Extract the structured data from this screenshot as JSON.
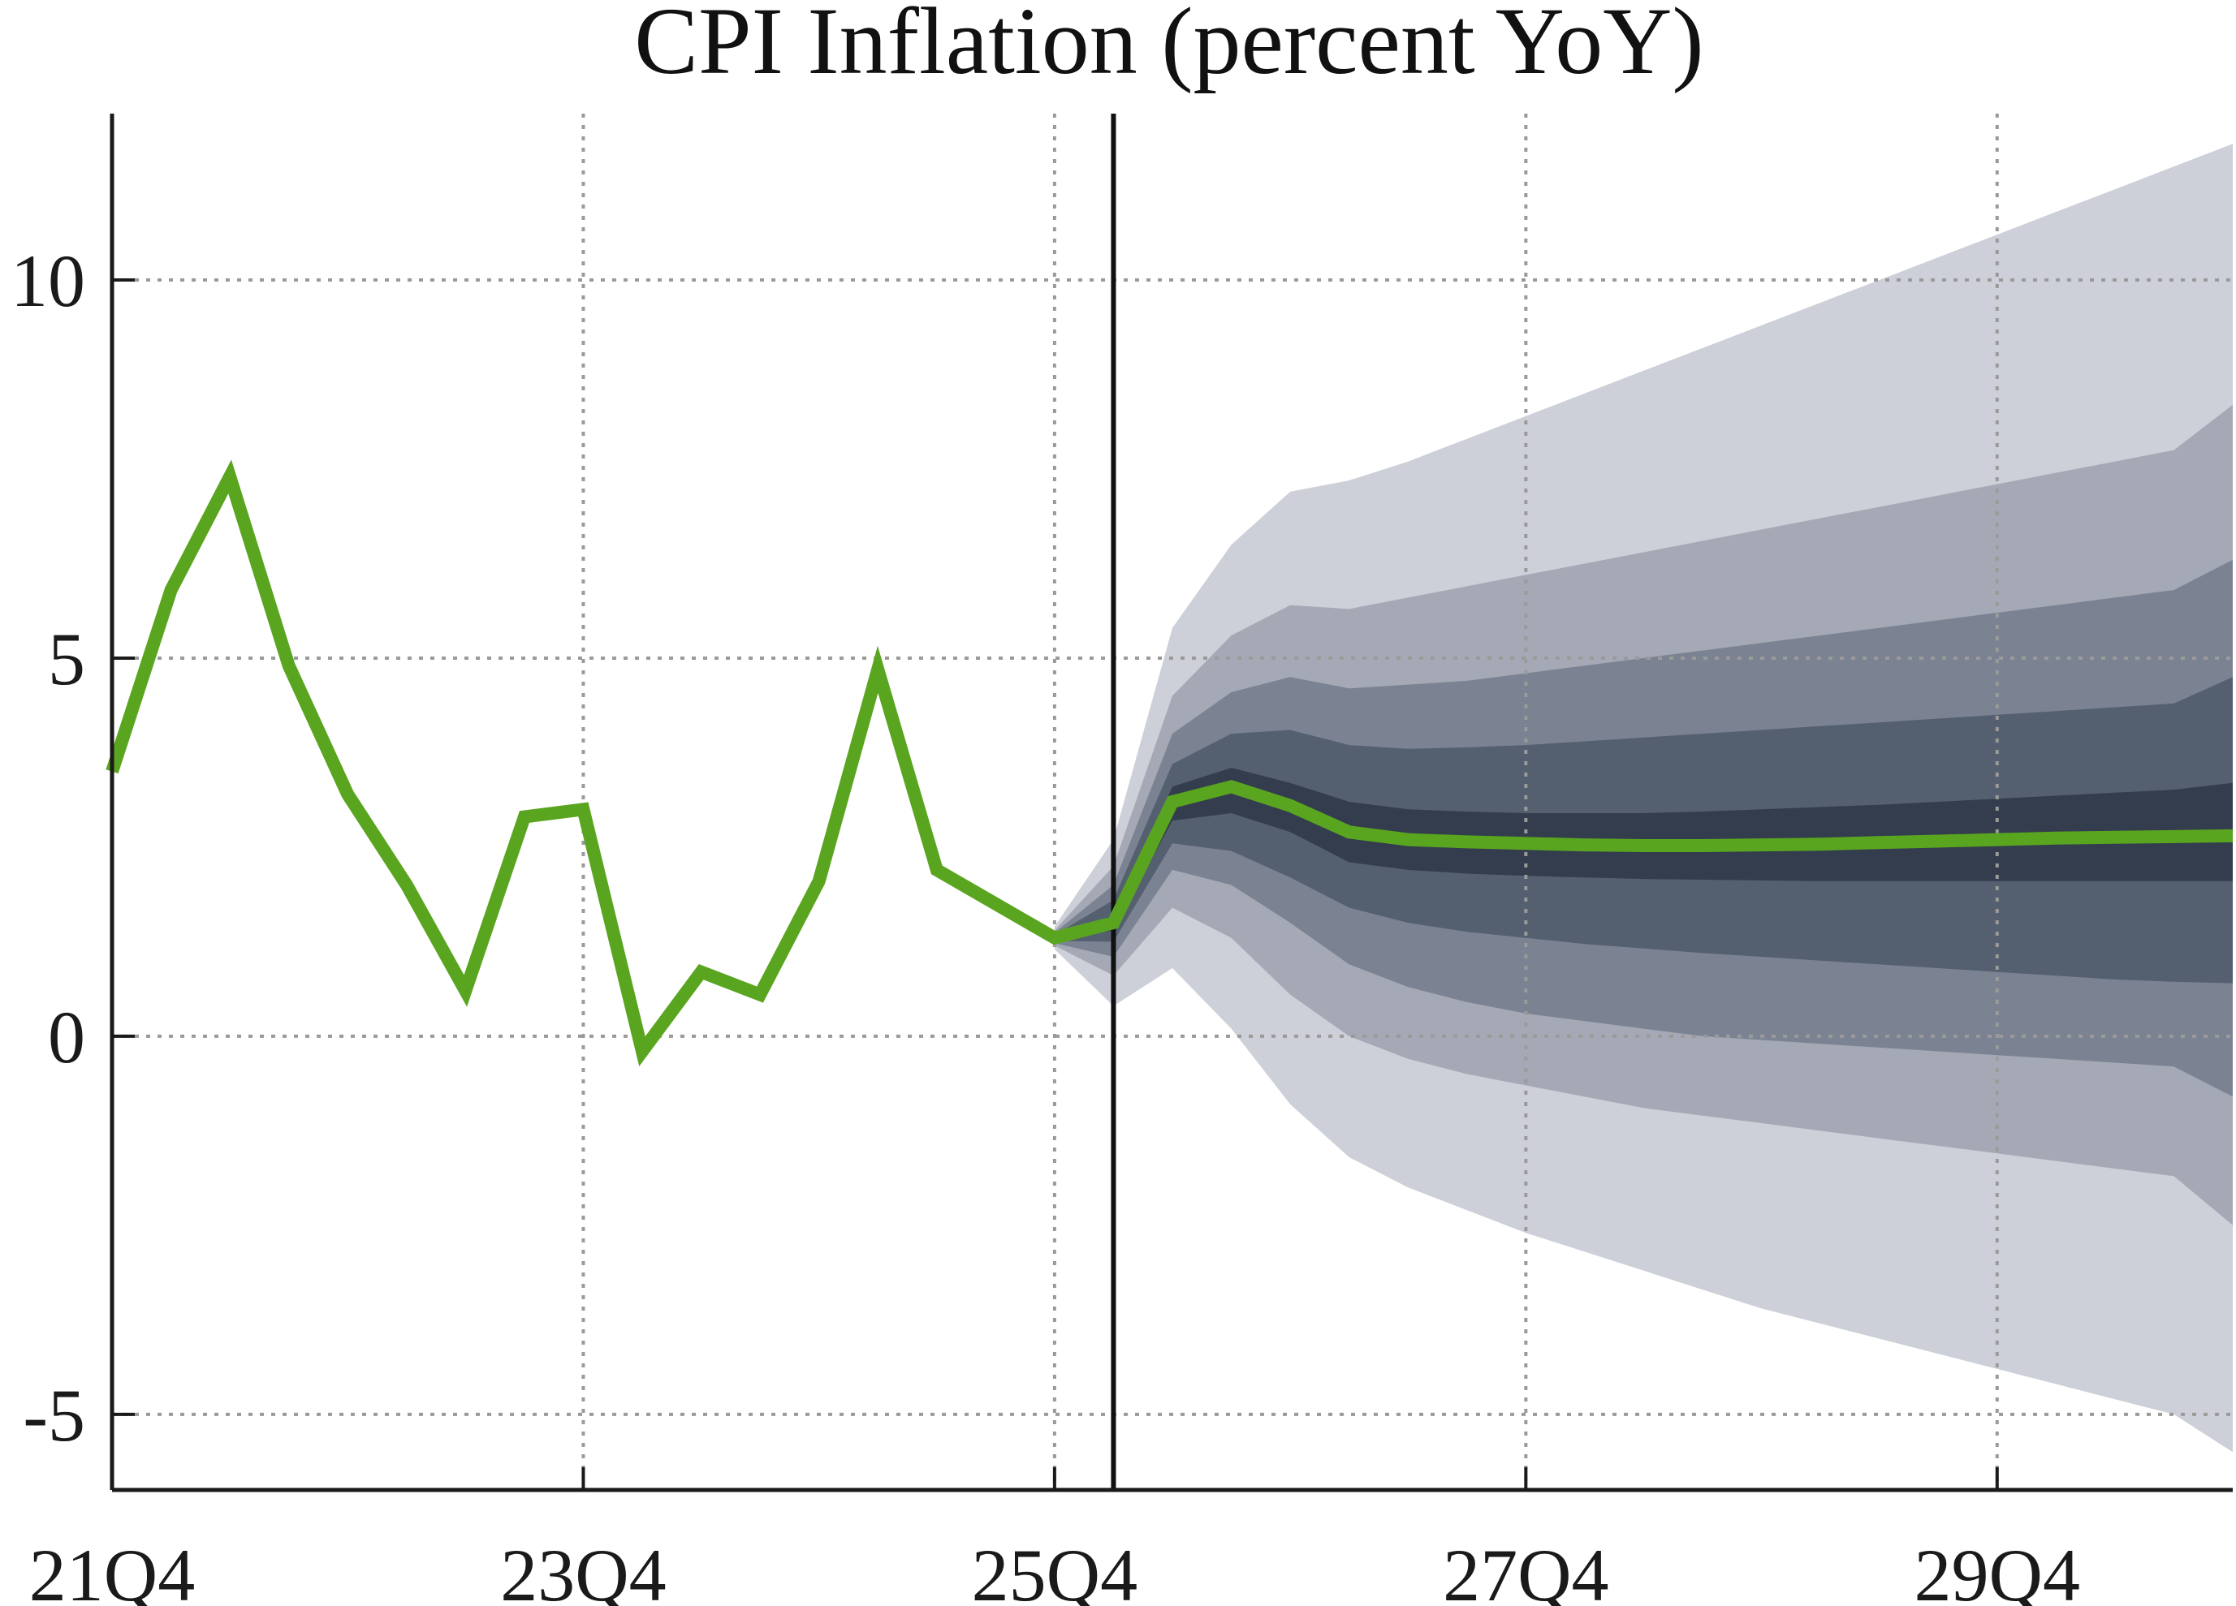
{
  "chart_data": {
    "type": "line",
    "title": "CPI Inflation (percent YoY)",
    "xlabel": "",
    "ylabel": "",
    "x_tick_labels": [
      "21Q4",
      "23Q4",
      "25Q4",
      "27Q4",
      "29Q4"
    ],
    "x_tick_positions": [
      0,
      8,
      16,
      24,
      32
    ],
    "y_ticks": [
      -5,
      0,
      5,
      10
    ],
    "y_tick_labels": [
      "-5",
      "0",
      "5",
      "10"
    ],
    "ylim": [
      -6,
      12.2
    ],
    "xlim": [
      0,
      36
    ],
    "grid": true,
    "forecast_start_index": 17,
    "colors": {
      "line": "#5aa51f",
      "vline": "#111111",
      "band_outer": "#cdd0d9",
      "band_2": "#a5a9b5",
      "band_3": "#7b8393",
      "band_4": "#545f70",
      "band_inner": "#333d4e"
    },
    "series": [
      {
        "name": "CPI inflation",
        "x": [
          0,
          1,
          2,
          3,
          4,
          5,
          6,
          7,
          8,
          9,
          10,
          11,
          12,
          13,
          14,
          15,
          16,
          17,
          18,
          19,
          20,
          21,
          22,
          23,
          24,
          25,
          26,
          27,
          28,
          29,
          30,
          31,
          32,
          33,
          34,
          35,
          36
        ],
        "values": [
          3.5,
          5.9,
          7.4,
          4.9,
          3.2,
          2.0,
          0.6,
          2.9,
          3.0,
          -0.2,
          0.85,
          0.55,
          2.05,
          4.85,
          2.2,
          1.75,
          1.3,
          1.5,
          3.1,
          3.3,
          3.05,
          2.7,
          2.6,
          2.57,
          2.55,
          2.53,
          2.52,
          2.52,
          2.53,
          2.54,
          2.56,
          2.58,
          2.6,
          2.62,
          2.63,
          2.64,
          2.65
        ]
      }
    ],
    "fan_x": [
      16,
      17,
      18,
      19,
      20,
      21,
      22,
      23,
      24,
      25,
      26,
      27,
      28,
      29,
      30,
      31,
      32,
      33,
      34,
      35,
      36
    ],
    "fan_bands": [
      {
        "name": "outer",
        "upper": [
          1.45,
          2.6,
          5.4,
          6.5,
          7.2,
          7.35,
          7.6,
          7.9,
          8.2,
          8.5,
          8.8,
          9.1,
          9.4,
          9.7,
          10.0,
          10.3,
          10.6,
          10.9,
          11.2,
          11.5,
          11.8
        ],
        "lower": [
          1.15,
          0.4,
          0.9,
          0.1,
          -0.9,
          -1.6,
          -2.0,
          -2.3,
          -2.6,
          -2.85,
          -3.1,
          -3.35,
          -3.6,
          -3.8,
          -4.0,
          -4.2,
          -4.4,
          -4.6,
          -4.8,
          -5.0,
          -5.5
        ]
      },
      {
        "name": "band2",
        "upper": [
          1.4,
          2.25,
          4.5,
          5.3,
          5.7,
          5.65,
          5.8,
          5.95,
          6.1,
          6.25,
          6.4,
          6.55,
          6.7,
          6.85,
          7.0,
          7.15,
          7.3,
          7.45,
          7.6,
          7.75,
          8.35
        ],
        "lower": [
          1.2,
          0.8,
          1.7,
          1.3,
          0.55,
          0.0,
          -0.3,
          -0.5,
          -0.65,
          -0.8,
          -0.95,
          -1.05,
          -1.15,
          -1.25,
          -1.35,
          -1.45,
          -1.55,
          -1.65,
          -1.75,
          -1.85,
          -2.5
        ]
      },
      {
        "name": "band3",
        "upper": [
          1.37,
          2.0,
          4.0,
          4.55,
          4.75,
          4.6,
          4.65,
          4.7,
          4.8,
          4.9,
          5.0,
          5.1,
          5.2,
          5.3,
          5.4,
          5.5,
          5.6,
          5.7,
          5.8,
          5.9,
          6.3
        ],
        "lower": [
          1.23,
          1.05,
          2.2,
          2.0,
          1.5,
          0.95,
          0.65,
          0.45,
          0.3,
          0.2,
          0.1,
          0.0,
          -0.05,
          -0.1,
          -0.15,
          -0.2,
          -0.25,
          -0.3,
          -0.35,
          -0.4,
          -0.8
        ]
      },
      {
        "name": "band4",
        "upper": [
          1.34,
          1.8,
          3.6,
          4.0,
          4.05,
          3.85,
          3.8,
          3.82,
          3.85,
          3.9,
          3.95,
          4.0,
          4.05,
          4.1,
          4.15,
          4.2,
          4.25,
          4.3,
          4.35,
          4.4,
          4.75
        ],
        "lower": [
          1.26,
          1.25,
          2.55,
          2.45,
          2.1,
          1.7,
          1.5,
          1.38,
          1.3,
          1.22,
          1.16,
          1.1,
          1.05,
          1.0,
          0.95,
          0.9,
          0.85,
          0.8,
          0.75,
          0.72,
          0.7
        ]
      },
      {
        "name": "inner",
        "upper": [
          1.32,
          1.6,
          3.3,
          3.55,
          3.35,
          3.1,
          3.0,
          2.97,
          2.95,
          2.95,
          2.95,
          2.97,
          3.0,
          3.03,
          3.06,
          3.1,
          3.14,
          3.18,
          3.22,
          3.26,
          3.35
        ],
        "lower": [
          1.28,
          1.4,
          2.85,
          2.95,
          2.7,
          2.3,
          2.2,
          2.15,
          2.12,
          2.1,
          2.08,
          2.07,
          2.06,
          2.05,
          2.05,
          2.05,
          2.05,
          2.05,
          2.05,
          2.05,
          2.05
        ]
      }
    ]
  }
}
